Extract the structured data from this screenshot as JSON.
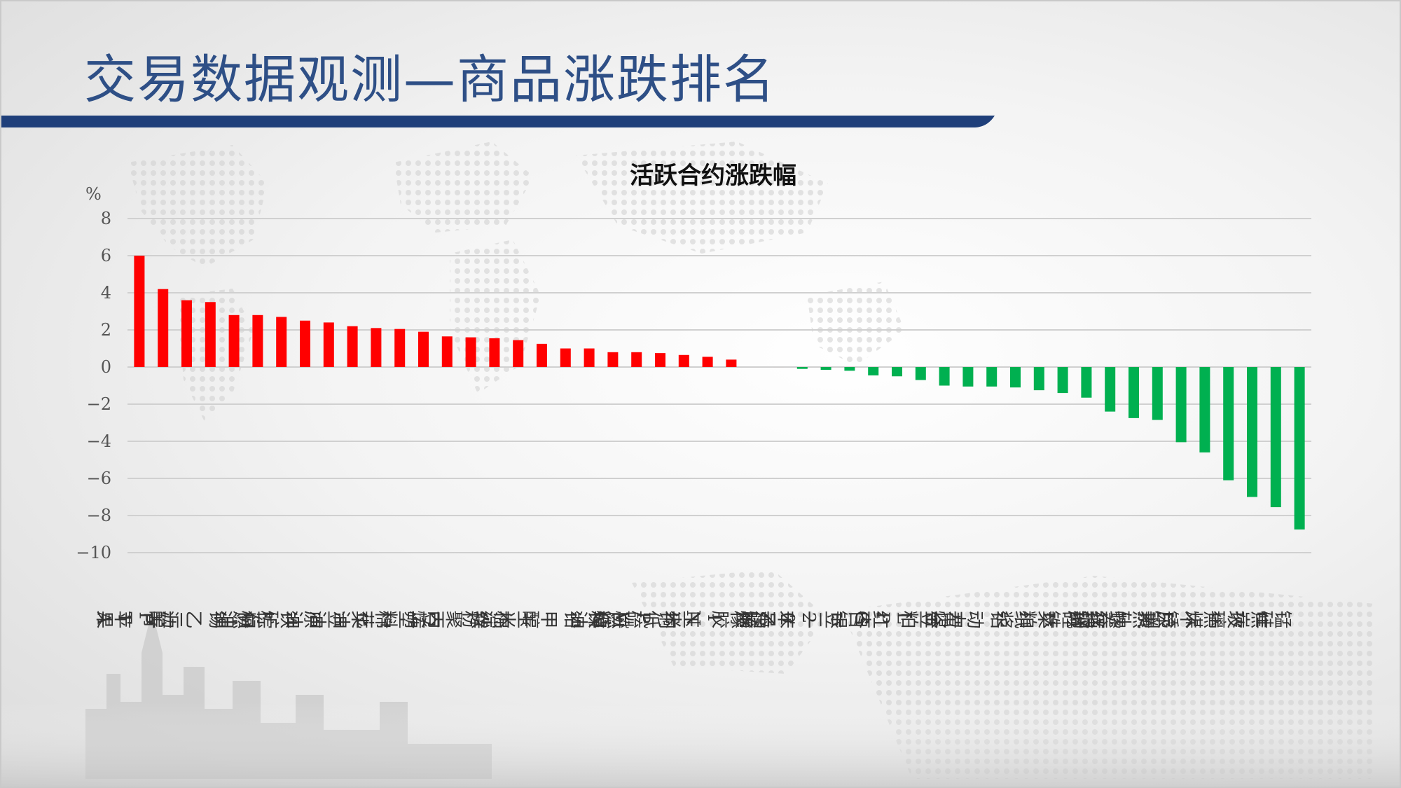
{
  "page": {
    "title": "交易数据观测—商品涨跌排名"
  },
  "colors": {
    "up": "#ff0000",
    "down": "#00b050",
    "title": "#2e4f86",
    "rule": "#1f3f7a",
    "grid": "#d0d0d0"
  },
  "chart_data": {
    "type": "bar",
    "title": "活跃合约涨跌幅",
    "ylabel": "",
    "unit": "%",
    "ylim": [
      -10,
      8
    ],
    "yticks": [
      8,
      6,
      4,
      2,
      0,
      -2,
      -4,
      -6,
      -8,
      -10
    ],
    "ytick_labels": [
      "8",
      "6",
      "4",
      "2",
      "0",
      "−2",
      "−4",
      "−6",
      "−8",
      "−10"
    ],
    "grid": true,
    "legend": "none",
    "categories": [
      "苹果",
      "PTA",
      "沥青",
      "乙二醇",
      "锡",
      "燃油",
      "棕榈油",
      "铁矿石",
      "原油",
      "豆油",
      "菜油",
      "棉花",
      "塑料",
      "豆一",
      "聚丙烯",
      "锌",
      "棉纱",
      "玉米淀粉",
      "甲醇",
      "铅",
      "镍",
      "白糖",
      "PVC",
      "铜",
      "玉米",
      "INE低硫燃料油",
      "橡胶",
      "鸡蛋",
      "苯乙烯",
      "20号胶",
      "豆二",
      "白银",
      "红枣",
      "LPG",
      "豆粕",
      "黄金",
      "动力煤",
      "铝",
      "纸浆",
      "菜粕",
      "硅铁",
      "纯碱",
      "螺纹钢",
      "热轧卷板",
      "尿素",
      "不锈钢",
      "焦煤",
      "玻璃",
      "焦炭",
      "锰硅"
    ],
    "series": [
      {
        "values": [
          6.0,
          4.2,
          3.6,
          3.5,
          2.8,
          2.8,
          2.7,
          2.5,
          2.4,
          2.2,
          2.1,
          2.05,
          1.9,
          1.65,
          1.6,
          1.55,
          1.45,
          1.25,
          1.0,
          1.0,
          0.8,
          0.8,
          0.75,
          0.65,
          0.55,
          0.4,
          0.0,
          0.0,
          -0.1,
          -0.15,
          -0.2,
          -0.45,
          -0.5,
          -0.7,
          -1.0,
          -1.05,
          -1.05,
          -1.1,
          -1.25,
          -1.4,
          -1.65,
          -2.4,
          -2.75,
          -2.85,
          -4.05,
          -4.6,
          -6.1,
          -7.0,
          -7.55,
          -8.75
        ]
      }
    ]
  }
}
